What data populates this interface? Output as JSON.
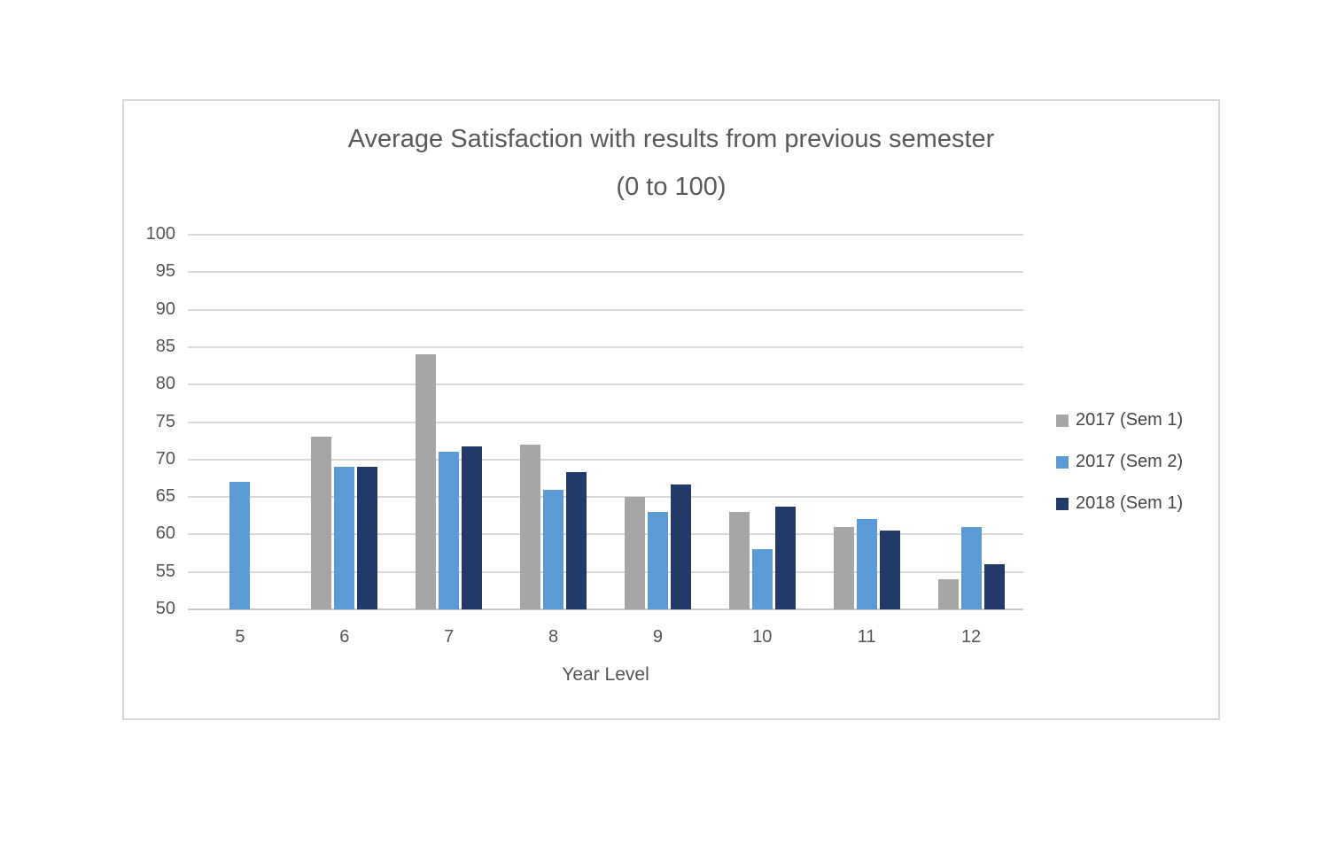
{
  "chart_data": {
    "type": "bar",
    "title": "Average Satisfaction with results from previous semester",
    "subtitle": "(0 to 100)",
    "xlabel": "Year Level",
    "ylabel": "",
    "categories": [
      "5",
      "6",
      "7",
      "8",
      "9",
      "10",
      "11",
      "12"
    ],
    "series": [
      {
        "name": "2017 (Sem 1)",
        "color": "#a6a6a6",
        "values": [
          null,
          73,
          84,
          72,
          65,
          63,
          61,
          54
        ]
      },
      {
        "name": "2017 (Sem 2)",
        "color": "#5b9bd5",
        "values": [
          67,
          69,
          71,
          66,
          63,
          58,
          62,
          61
        ]
      },
      {
        "name": "2018 (Sem 1)",
        "color": "#223a67",
        "values": [
          null,
          69,
          71.7,
          68.3,
          66.7,
          63.7,
          60.5,
          56
        ]
      }
    ],
    "ylim": [
      50,
      100
    ],
    "ytick_step": 5,
    "ytick_labels": [
      "100",
      "95",
      "90",
      "85",
      "80",
      "75",
      "70",
      "65",
      "60",
      "55",
      "50"
    ],
    "grid": true,
    "legend_position": "right",
    "gridline_color": "#d9d9d9"
  }
}
